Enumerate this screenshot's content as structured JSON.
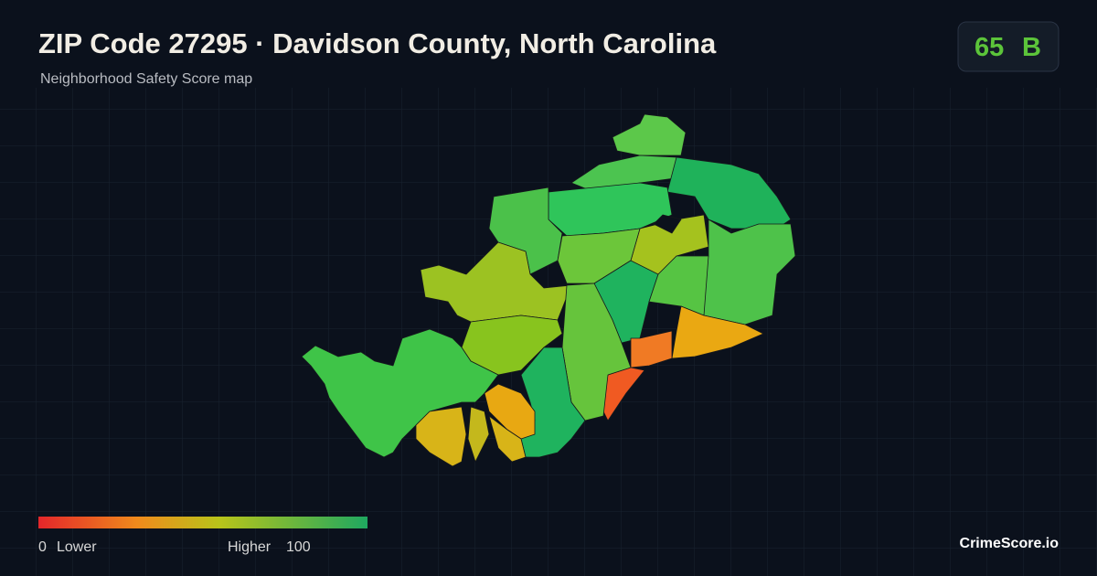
{
  "header": {
    "title": "ZIP Code 27295 · Davidson County, North Carolina",
    "subtitle": "Neighborhood Safety Score map"
  },
  "score": {
    "value": "65",
    "grade": "B"
  },
  "legend": {
    "min": "0",
    "min_label": "Lower",
    "max_label": "Higher",
    "max": "100"
  },
  "brand": "CrimeScore.io"
}
